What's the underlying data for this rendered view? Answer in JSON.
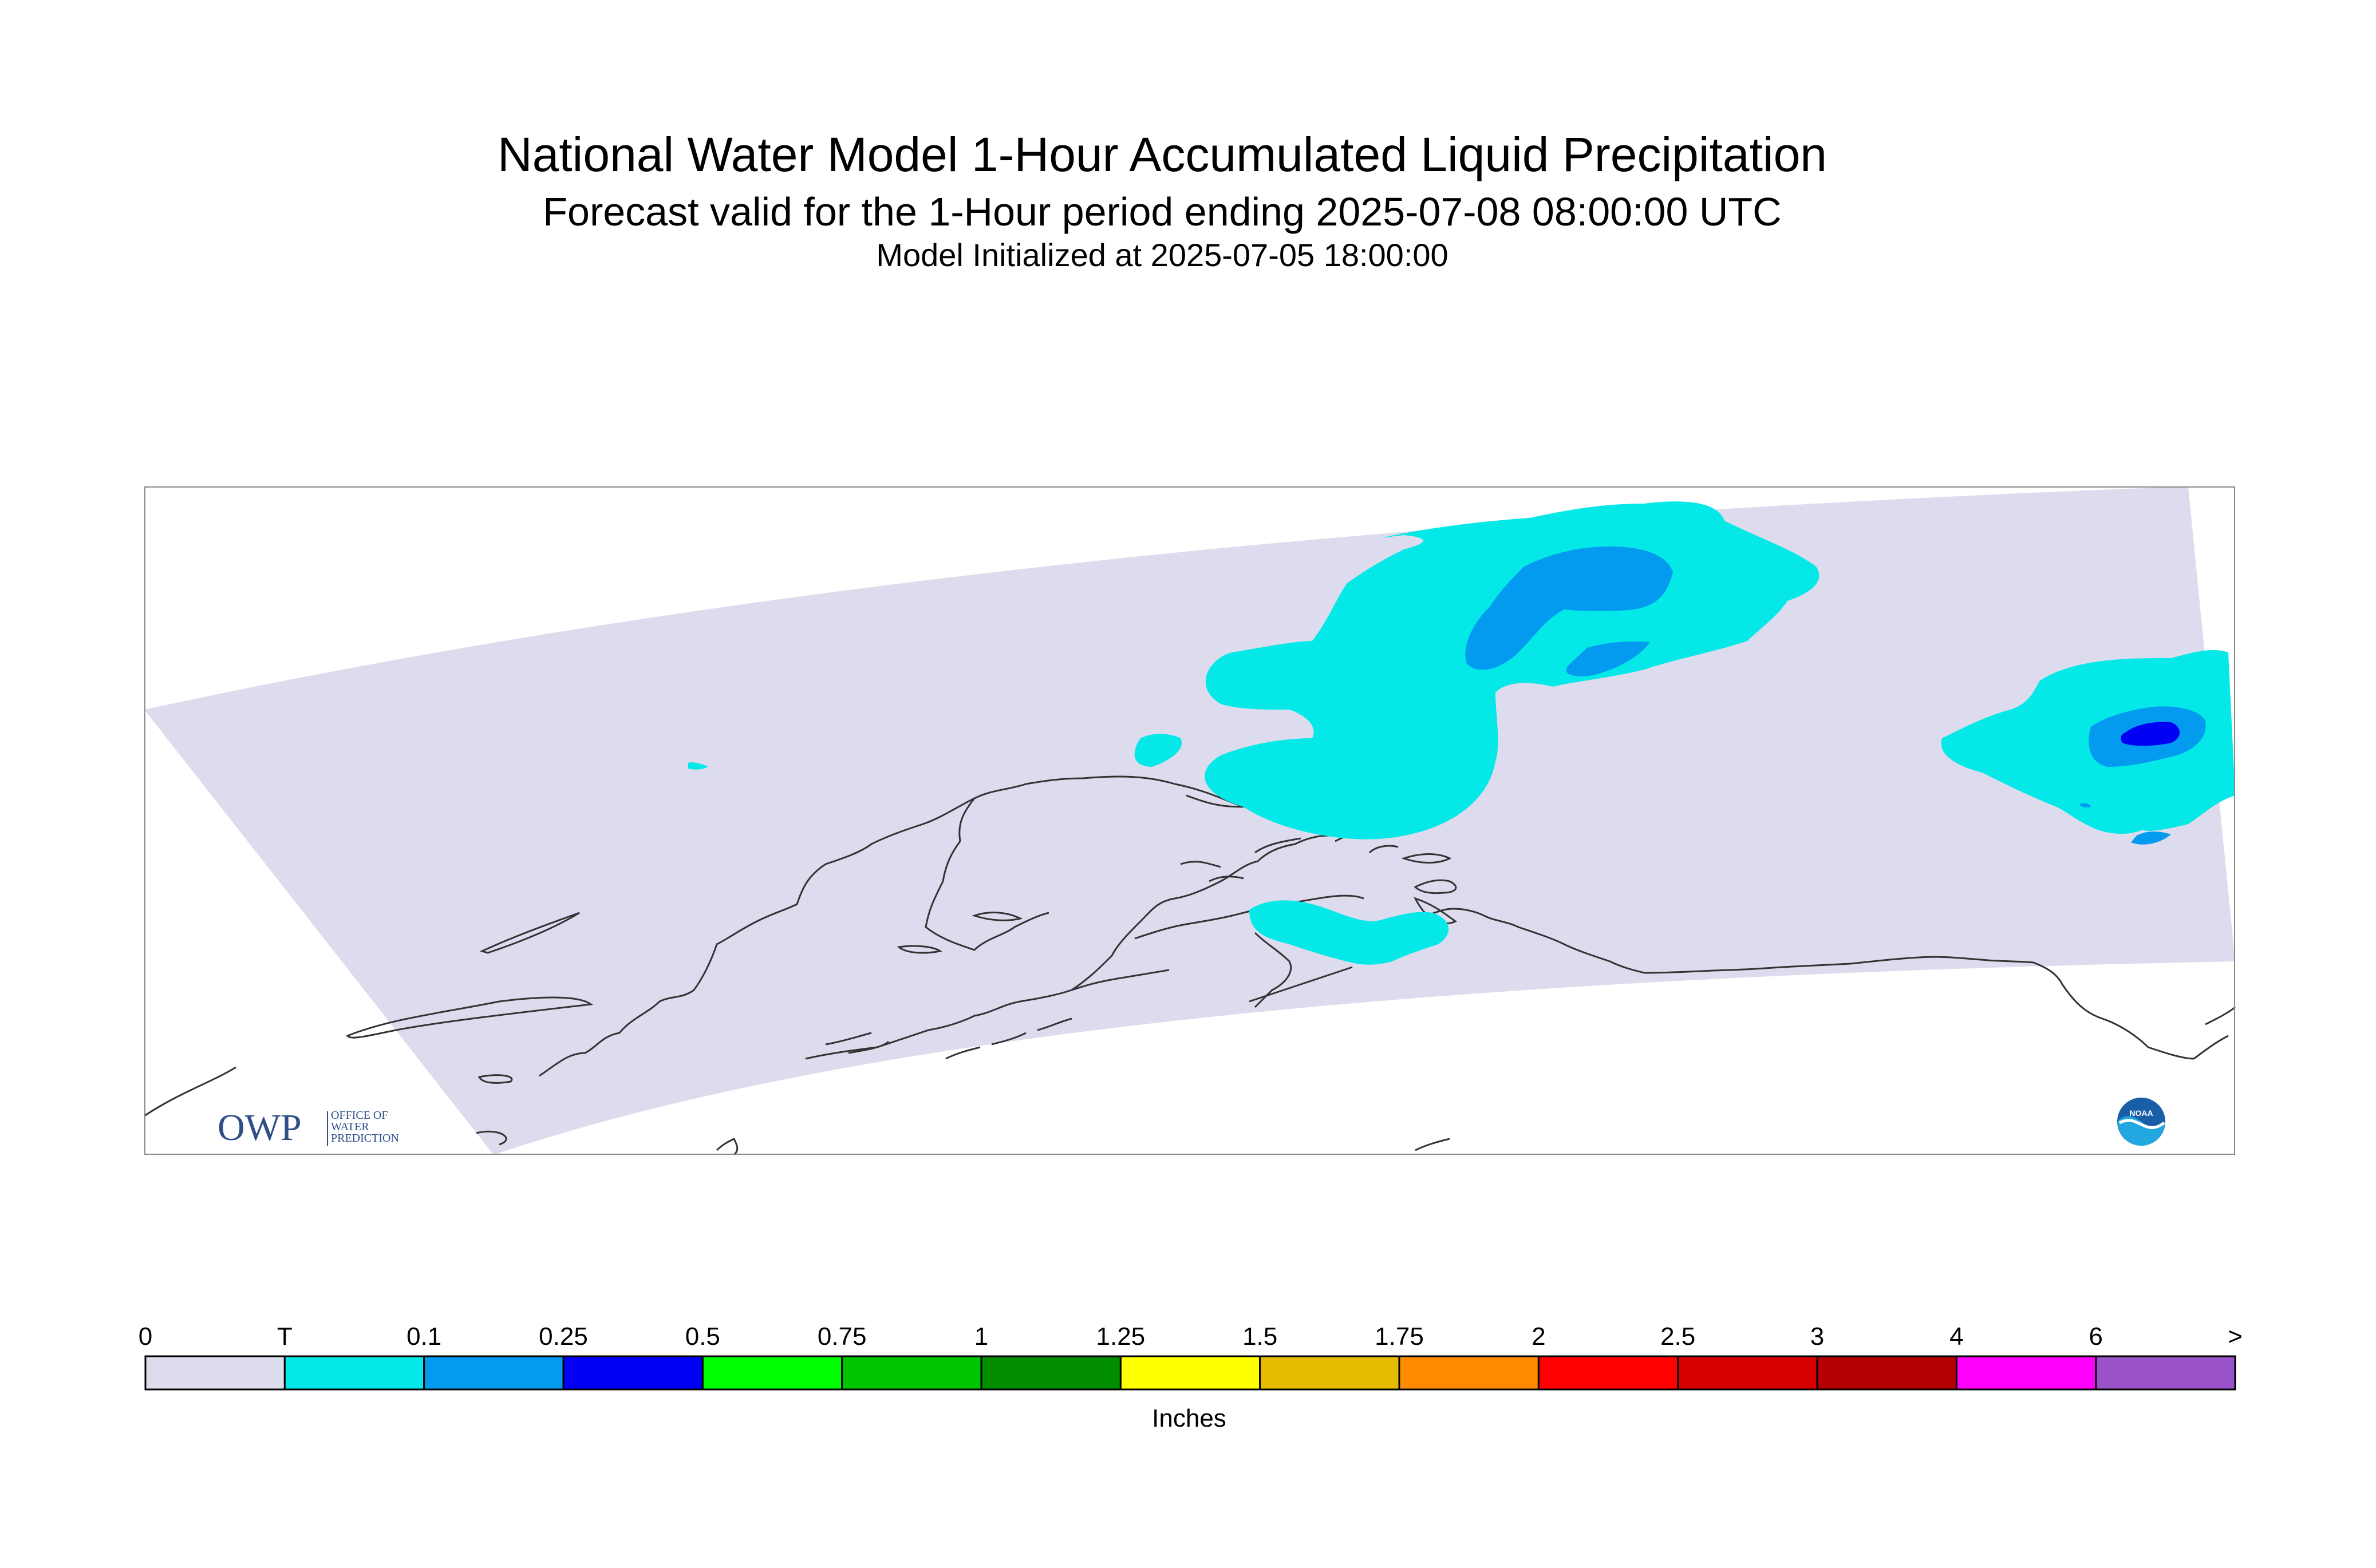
{
  "header": {
    "title": "National Water Model 1-Hour Accumulated Liquid Precipitation",
    "subtitle": "Forecast valid for the 1-Hour period ending 2025-07-08 08:00:00 UTC",
    "init": "Model Initialized at 2025-07-05 18:00:00"
  },
  "logos": {
    "owp_letters": "OWP",
    "owp_line1": "OFFICE OF",
    "owp_line2": "WATER",
    "owp_line3": "PREDICTION",
    "noaa_text": "NOAA"
  },
  "legend": {
    "unit_label": "Inches",
    "ticks": [
      "0",
      "T",
      "0.1",
      "0.25",
      "0.5",
      "0.75",
      "1",
      "1.25",
      "1.5",
      "1.75",
      "2",
      "2.5",
      "3",
      "4",
      "6",
      ">"
    ],
    "colors": [
      "#dcdcee",
      "#04e8e8",
      "#039bf0",
      "#0000f5",
      "#00ff00",
      "#00c600",
      "#008e00",
      "#ffff00",
      "#e6bc00",
      "#ff8c00",
      "#ff0000",
      "#d60000",
      "#b40000",
      "#ff00ff",
      "#9a52c8"
    ]
  },
  "map_colors": {
    "domain_fill": "#dcdcee",
    "trace": "#04e8e8",
    "light_blue": "#039bf0",
    "dark_blue": "#0000f5",
    "coast_line": "#333333",
    "frame": "#888888"
  }
}
